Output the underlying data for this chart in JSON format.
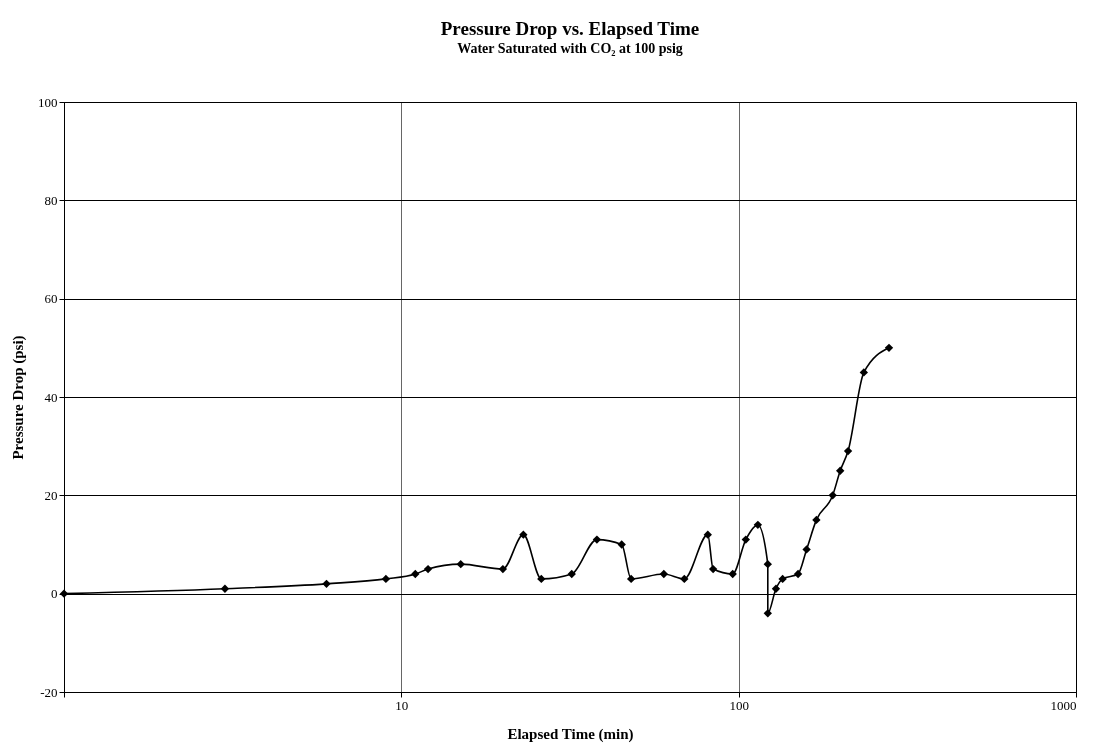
{
  "chart_data": {
    "type": "line",
    "title": "Pressure Drop vs. Elapsed Time",
    "subtitle": "Water Saturated with CO₂ at 100 psig",
    "xlabel": "Elapsed Time (min)",
    "ylabel": "Pressure Drop (psi)",
    "x": [
      1,
      3,
      6,
      9,
      11,
      12,
      15,
      20,
      23,
      26,
      32,
      38,
      45,
      48,
      60,
      69,
      81,
      84,
      96,
      105,
      114,
      122,
      122,
      129,
      135,
      150,
      159,
      170,
      190,
      200,
      211,
      235,
      279
    ],
    "series": [
      {
        "color": "#000000",
        "values": [
          0,
          1,
          2,
          3,
          4,
          5,
          6,
          5,
          12,
          3,
          4,
          11,
          10,
          3,
          4,
          3,
          12,
          5,
          4,
          11,
          14,
          6,
          -4,
          1,
          3,
          4,
          9,
          15,
          20,
          25,
          29,
          45,
          50
        ]
      }
    ],
    "log": "x",
    "xlim": [
      1,
      1000
    ],
    "xticks": [
      {
        "value": 1,
        "label": null
      },
      10,
      100,
      1000
    ],
    "ylim": [
      -20,
      100
    ],
    "yticks": [
      -20,
      0,
      20,
      40,
      60,
      80,
      100
    ],
    "grid": true,
    "marker": "diamond",
    "line_style": "solid"
  }
}
